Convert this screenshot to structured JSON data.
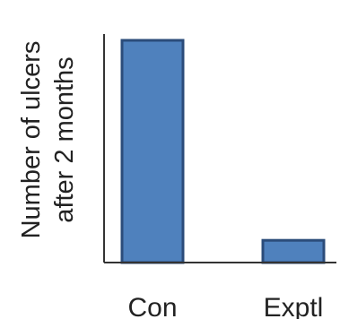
{
  "chart_data": {
    "type": "bar",
    "categories": [
      "Con",
      "Exptl"
    ],
    "values": [
      100,
      10
    ],
    "ylabel_lines": [
      "Number of ulcers",
      "after 2 months"
    ],
    "ylim": [
      0,
      100
    ],
    "grid": false,
    "bar_color": "#4F81BD",
    "bar_edge_color": "#2B4C7A",
    "axis_color": "#333333"
  }
}
